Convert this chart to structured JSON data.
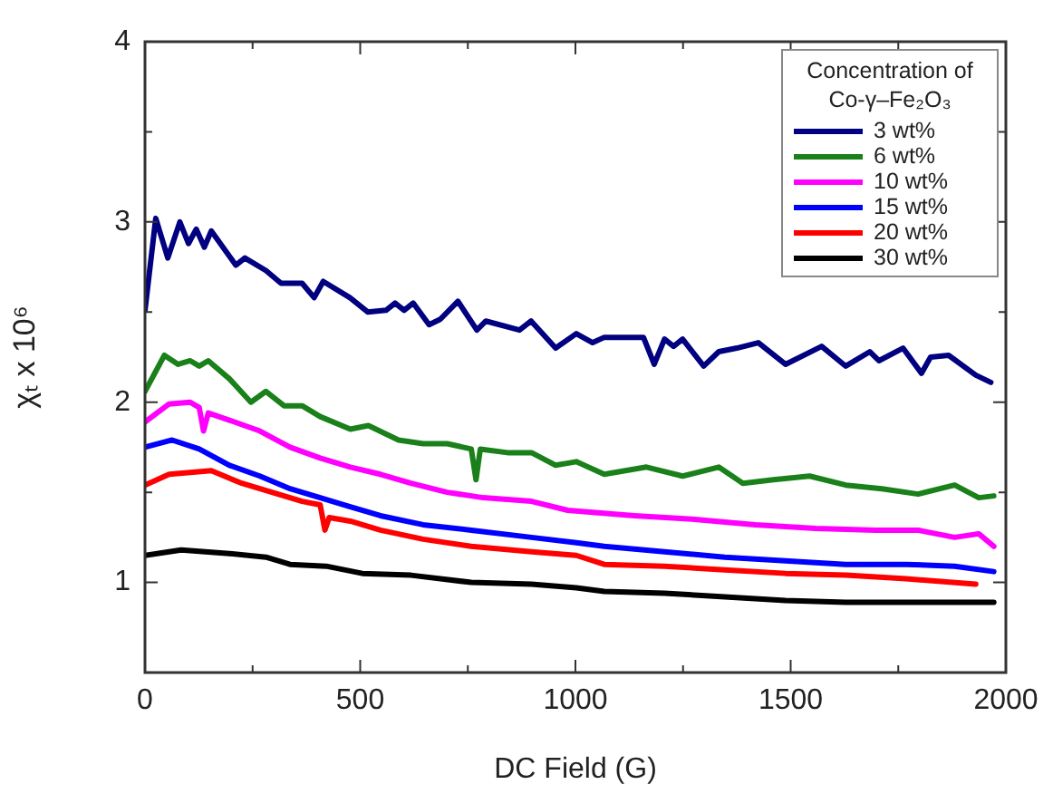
{
  "chart_data": {
    "type": "line",
    "xlabel": "DC Field (G)",
    "ylabel": "χₜ x 10⁶",
    "legend_title": "Concentration of Co-γ–Fe₂O₃",
    "xlim": [
      0,
      2000
    ],
    "xticks": [
      0,
      {
        "value": 250,
        "label": null
      },
      500,
      {
        "value": 750,
        "label": null
      },
      1000,
      {
        "value": 1250,
        "label": null
      },
      1500,
      {
        "value": 1750,
        "label": null
      },
      2000
    ],
    "ylim": [
      0.5,
      4
    ],
    "yticks": [
      {
        "value": 0.5,
        "label": null
      },
      1,
      {
        "value": 1.5,
        "label": null
      },
      2,
      {
        "value": 2.5,
        "label": null
      },
      3,
      {
        "value": 3.5,
        "label": null
      },
      4
    ],
    "grid": false,
    "legend": "top right",
    "marker": "none",
    "line_style": "solid",
    "series": [
      {
        "name": "3 wt%",
        "color": "#000080",
        "x": [
          0,
          25,
          53,
          81,
          101,
          119,
          138,
          154,
          211,
          232,
          281,
          316,
          365,
          393,
          414,
          476,
          518,
          560,
          581,
          602,
          623,
          660,
          686,
          727,
          771,
          792,
          870,
          897,
          954,
          1002,
          1040,
          1067,
          1158,
          1183,
          1207,
          1228,
          1249,
          1298,
          1333,
          1375,
          1425,
          1488,
          1572,
          1628,
          1684,
          1705,
          1761,
          1804,
          1825,
          1867,
          1930,
          1965
        ],
        "values": [
          2.51,
          3.02,
          2.8,
          3.0,
          2.88,
          2.96,
          2.86,
          2.95,
          2.76,
          2.8,
          2.73,
          2.66,
          2.66,
          2.58,
          2.67,
          2.58,
          2.5,
          2.51,
          2.55,
          2.51,
          2.55,
          2.43,
          2.46,
          2.56,
          2.4,
          2.45,
          2.4,
          2.45,
          2.3,
          2.38,
          2.33,
          2.36,
          2.36,
          2.21,
          2.35,
          2.31,
          2.35,
          2.2,
          2.28,
          2.3,
          2.33,
          2.21,
          2.31,
          2.2,
          2.28,
          2.23,
          2.3,
          2.16,
          2.25,
          2.26,
          2.15,
          2.11
        ]
      },
      {
        "name": "6 wt%",
        "color": "#1a801a",
        "x": [
          0,
          45,
          77,
          105,
          126,
          147,
          196,
          246,
          281,
          323,
          365,
          407,
          477,
          519,
          589,
          646,
          702,
          758,
          769,
          779,
          842,
          898,
          954,
          1002,
          1067,
          1165,
          1249,
          1333,
          1389,
          1460,
          1544,
          1628,
          1712,
          1796,
          1881,
          1937,
          1972
        ],
        "values": [
          2.06,
          2.26,
          2.21,
          2.23,
          2.2,
          2.23,
          2.13,
          2.0,
          2.06,
          1.98,
          1.98,
          1.92,
          1.85,
          1.87,
          1.79,
          1.77,
          1.77,
          1.74,
          1.57,
          1.74,
          1.72,
          1.72,
          1.65,
          1.67,
          1.6,
          1.64,
          1.59,
          1.64,
          1.55,
          1.57,
          1.59,
          1.54,
          1.52,
          1.49,
          1.54,
          1.47,
          1.48
        ]
      },
      {
        "name": "10 wt%",
        "color": "#ff00ff",
        "x": [
          0,
          56,
          105,
          126,
          136,
          147,
          196,
          267,
          337,
          407,
          477,
          547,
          618,
          702,
          786,
          898,
          982,
          1137,
          1277,
          1418,
          1558,
          1698,
          1796,
          1881,
          1937,
          1972
        ],
        "values": [
          1.89,
          1.99,
          2.0,
          1.97,
          1.84,
          1.94,
          1.9,
          1.84,
          1.75,
          1.69,
          1.64,
          1.6,
          1.55,
          1.5,
          1.47,
          1.45,
          1.4,
          1.37,
          1.35,
          1.32,
          1.3,
          1.29,
          1.29,
          1.25,
          1.27,
          1.2
        ]
      },
      {
        "name": "15 wt%",
        "color": "#0000ff",
        "x": [
          0,
          63,
          126,
          196,
          267,
          337,
          407,
          477,
          547,
          646,
          758,
          898,
          1002,
          1067,
          1207,
          1347,
          1488,
          1628,
          1768,
          1881,
          1972
        ],
        "values": [
          1.75,
          1.79,
          1.74,
          1.65,
          1.59,
          1.52,
          1.47,
          1.42,
          1.37,
          1.32,
          1.29,
          1.25,
          1.22,
          1.2,
          1.17,
          1.14,
          1.12,
          1.1,
          1.1,
          1.09,
          1.06
        ]
      },
      {
        "name": "20 wt%",
        "color": "#ff0000",
        "x": [
          0,
          56,
          154,
          225,
          295,
          365,
          407,
          418,
          428,
          477,
          547,
          646,
          758,
          898,
          1002,
          1067,
          1207,
          1347,
          1488,
          1628,
          1768,
          1930
        ],
        "values": [
          1.54,
          1.6,
          1.62,
          1.55,
          1.5,
          1.45,
          1.43,
          1.29,
          1.36,
          1.34,
          1.29,
          1.24,
          1.2,
          1.17,
          1.15,
          1.1,
          1.09,
          1.07,
          1.05,
          1.04,
          1.02,
          0.99
        ]
      },
      {
        "name": "30 wt%",
        "color": "#000000",
        "x": [
          0,
          84,
          196,
          281,
          337,
          421,
          505,
          618,
          758,
          898,
          1002,
          1067,
          1207,
          1347,
          1488,
          1628,
          1768,
          1972
        ],
        "values": [
          1.15,
          1.18,
          1.16,
          1.14,
          1.1,
          1.09,
          1.05,
          1.04,
          1.0,
          0.99,
          0.97,
          0.95,
          0.94,
          0.92,
          0.9,
          0.89,
          0.89,
          0.89
        ]
      }
    ]
  }
}
